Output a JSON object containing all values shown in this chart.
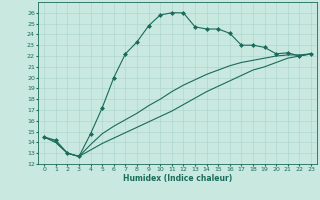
{
  "xlabel": "Humidex (Indice chaleur)",
  "ylabel": "",
  "background_color": "#c8e8e0",
  "line_color": "#1a6b5a",
  "grid_color": "#a8d4cc",
  "xlim": [
    -0.5,
    23.5
  ],
  "ylim": [
    12,
    27
  ],
  "yticks": [
    12,
    13,
    14,
    15,
    16,
    17,
    18,
    19,
    20,
    21,
    22,
    23,
    24,
    25,
    26
  ],
  "xticks": [
    0,
    1,
    2,
    3,
    4,
    5,
    6,
    7,
    8,
    9,
    10,
    11,
    12,
    13,
    14,
    15,
    16,
    17,
    18,
    19,
    20,
    21,
    22,
    23
  ],
  "series": [
    {
      "x": [
        0,
        1,
        2,
        3,
        4,
        5,
        6,
        7,
        8,
        9,
        10,
        11,
        12,
        13,
        14,
        15,
        16,
        17,
        18,
        19,
        20,
        21,
        22,
        23
      ],
      "y": [
        14.5,
        14.2,
        13.0,
        12.7,
        14.8,
        17.2,
        20.0,
        22.2,
        23.3,
        24.8,
        25.8,
        26.0,
        26.0,
        24.7,
        24.5,
        24.5,
        24.1,
        23.0,
        23.0,
        22.8,
        22.2,
        22.3,
        22.0,
        22.2
      ],
      "marker": "D",
      "has_markers": true
    },
    {
      "x": [
        0,
        1,
        2,
        3,
        4,
        5,
        6,
        7,
        8,
        9,
        10,
        11,
        12,
        13,
        14,
        15,
        16,
        17,
        18,
        19,
        20,
        21,
        22,
        23
      ],
      "y": [
        14.5,
        14.0,
        13.0,
        12.7,
        13.8,
        14.8,
        15.5,
        16.1,
        16.7,
        17.4,
        18.0,
        18.7,
        19.3,
        19.8,
        20.3,
        20.7,
        21.1,
        21.4,
        21.6,
        21.8,
        22.0,
        22.1,
        22.1,
        22.2
      ],
      "marker": null,
      "has_markers": false
    },
    {
      "x": [
        0,
        1,
        2,
        3,
        4,
        5,
        6,
        7,
        8,
        9,
        10,
        11,
        12,
        13,
        14,
        15,
        16,
        17,
        18,
        19,
        20,
        21,
        22,
        23
      ],
      "y": [
        14.5,
        14.0,
        13.0,
        12.7,
        13.3,
        13.9,
        14.4,
        14.9,
        15.4,
        15.9,
        16.4,
        16.9,
        17.5,
        18.1,
        18.7,
        19.2,
        19.7,
        20.2,
        20.7,
        21.0,
        21.4,
        21.8,
        22.0,
        22.2
      ],
      "marker": null,
      "has_markers": false
    }
  ]
}
